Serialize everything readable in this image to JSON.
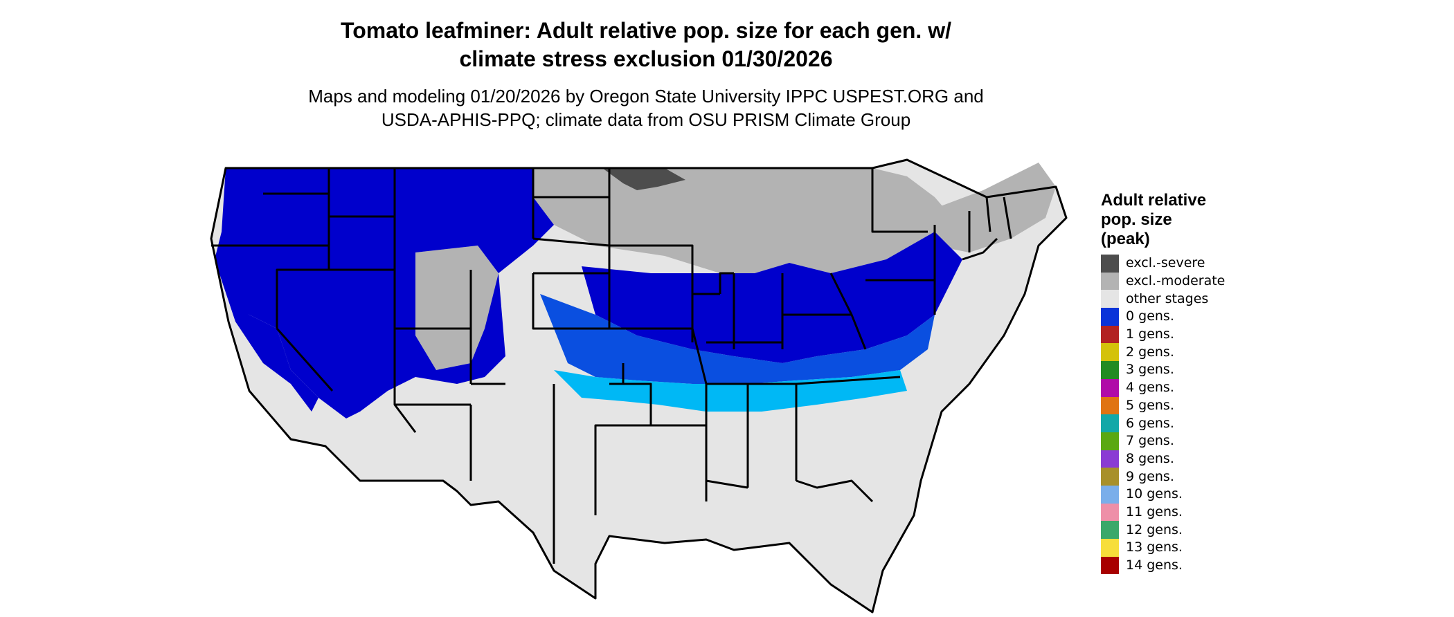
{
  "title_lines": [
    "Tomato leafminer: Adult relative pop. size for each gen. w/",
    "climate stress exclusion 01/30/2026"
  ],
  "subtitle_lines": [
    "Maps and modeling 01/20/2026 by Oregon State University IPPC USPEST.ORG and",
    "USDA-APHIS-PPQ; climate data from OSU PRISM Climate Group"
  ],
  "legend": {
    "title_lines": [
      "Adult relative",
      "pop. size",
      "(peak)"
    ],
    "items": [
      {
        "label": "excl.-severe",
        "color": "#4d4d4d"
      },
      {
        "label": "excl.-moderate",
        "color": "#b3b3b3"
      },
      {
        "label": "other stages",
        "color": "#e5e5e5"
      },
      {
        "label": "0 gens.",
        "color": "#0a33d9"
      },
      {
        "label": "1 gens.",
        "color": "#b22222"
      },
      {
        "label": "2 gens.",
        "color": "#d4c20a"
      },
      {
        "label": "3 gens.",
        "color": "#228b22"
      },
      {
        "label": "4 gens.",
        "color": "#b00ba8"
      },
      {
        "label": "5 gens.",
        "color": "#e07412"
      },
      {
        "label": "6 gens.",
        "color": "#12a8a8"
      },
      {
        "label": "7 gens.",
        "color": "#5aa812"
      },
      {
        "label": "8 gens.",
        "color": "#8a3bd4"
      },
      {
        "label": "9 gens.",
        "color": "#a8902a"
      },
      {
        "label": "10 gens.",
        "color": "#7aaeea"
      },
      {
        "label": "11 gens.",
        "color": "#ee8fa8"
      },
      {
        "label": "12 gens.",
        "color": "#3aa86a"
      },
      {
        "label": "13 gens.",
        "color": "#f7de3a"
      },
      {
        "label": "14 gens.",
        "color": "#a80000"
      }
    ]
  },
  "map_colors": {
    "outline": "#000000",
    "deep_blue": "#0000cc",
    "medium_blue": "#0a4fe0",
    "light_blue": "#00b8f5",
    "other_stages": "#e5e5e5",
    "excl_moderate": "#b3b3b3",
    "excl_severe": "#4d4d4d"
  }
}
